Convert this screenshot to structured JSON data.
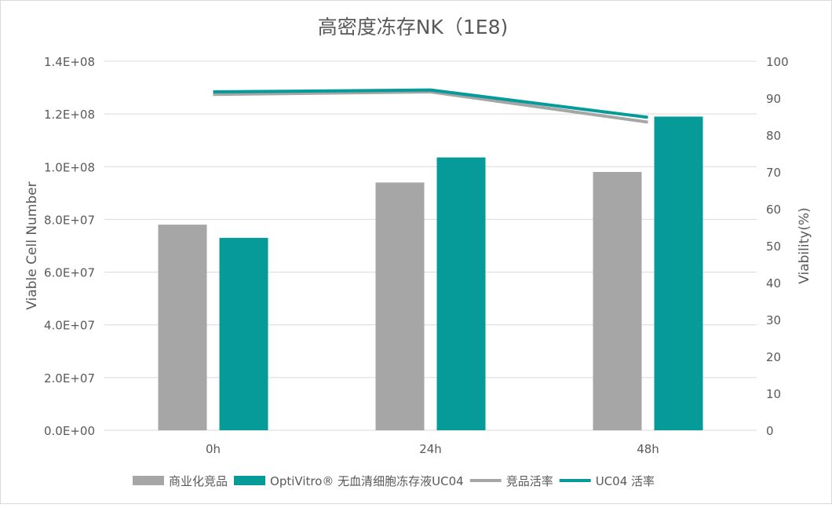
{
  "chart_data": {
    "type": "bar",
    "title": "高密度冻存NK（1E8)",
    "categories": [
      "0h",
      "24h",
      "48h"
    ],
    "ylabel": "Viable Cell Number",
    "y2label": "Viability(%)",
    "ylim": [
      0,
      140000000
    ],
    "y2lim": [
      0,
      100
    ],
    "yticks": [
      "0.0E+00",
      "2.0E+07",
      "4.0E+07",
      "6.0E+07",
      "8.0E+07",
      "1.0E+08",
      "1.2E+08",
      "1.4E+08"
    ],
    "y2ticks": [
      "0",
      "10",
      "20",
      "30",
      "40",
      "50",
      "60",
      "70",
      "80",
      "90",
      "100"
    ],
    "grid": true,
    "legend_position": "bottom",
    "series": [
      {
        "name": "商业化竞品",
        "kind": "bar",
        "axis": "left",
        "color": "#a6a6a6",
        "values": [
          78000000,
          94000000,
          98000000
        ]
      },
      {
        "name": "OptiVitro® 无血清细胞冻存液UC04",
        "kind": "bar",
        "axis": "left",
        "color": "#069a98",
        "values": [
          73000000,
          103500000,
          119000000
        ]
      },
      {
        "name": "竞品活率",
        "kind": "line",
        "axis": "right",
        "color": "#a6a6a6",
        "values": [
          91,
          91.7,
          83.5
        ]
      },
      {
        "name": "UC04 活率",
        "kind": "line",
        "axis": "right",
        "color": "#069a98",
        "values": [
          91.7,
          92.2,
          84.8
        ]
      }
    ]
  }
}
